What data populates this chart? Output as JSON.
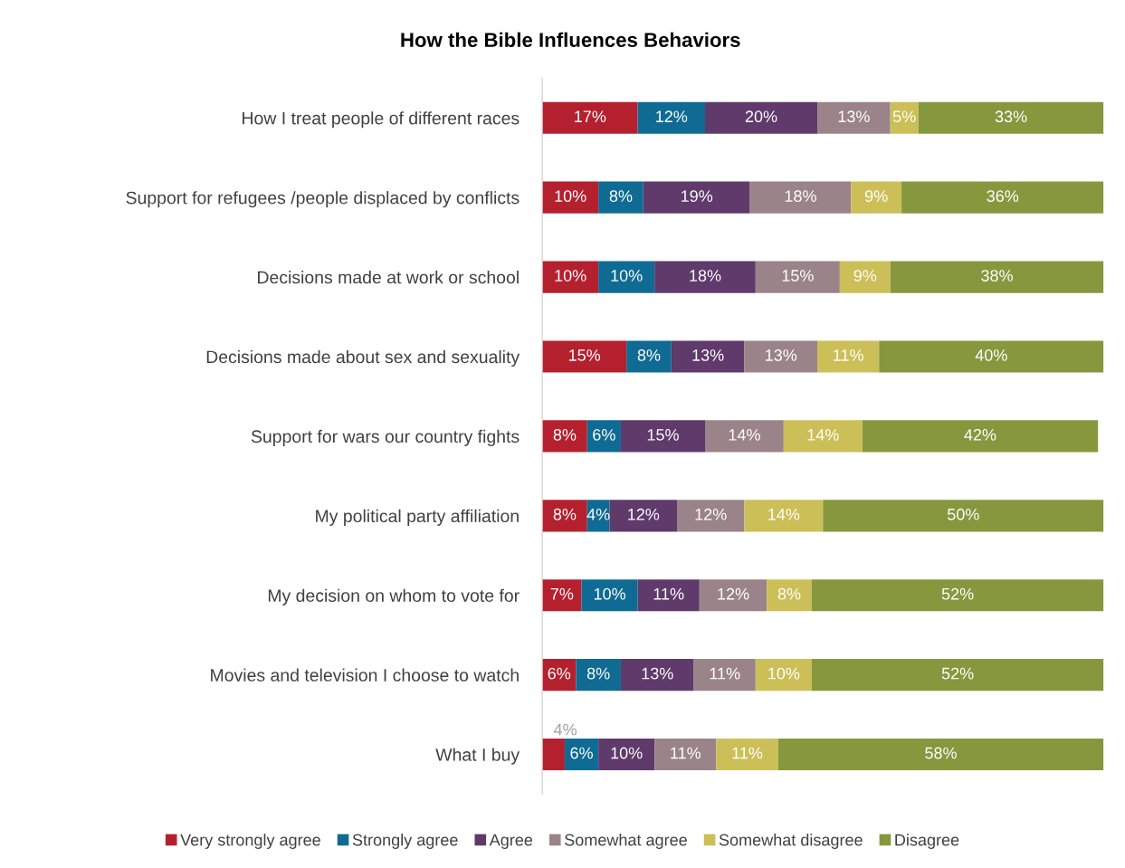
{
  "chart_data": {
    "type": "bar",
    "orientation": "horizontal",
    "stacked": true,
    "title": "How the Bible Influences Behaviors",
    "categories": [
      "How I treat people of different races",
      "Support for refugees /people displaced by conflicts",
      "Decisions made at work or school",
      "Decisions made about sex and sexuality",
      "Support for wars our country fights",
      "My political party affiliation",
      "My decision on whom to vote for",
      "Movies and television I choose to watch",
      "What I buy"
    ],
    "series": [
      {
        "name": "Very strongly agree",
        "color": "#b5202e",
        "values": [
          17,
          10,
          10,
          15,
          8,
          8,
          7,
          6,
          4
        ],
        "value_labels": [
          "17%",
          "10%",
          "10%",
          "15%",
          "8%",
          "8%",
          "7%",
          "6%",
          "4%"
        ]
      },
      {
        "name": "Strongly agree",
        "color": "#0f6b94",
        "values": [
          12,
          8,
          10,
          8,
          6,
          4,
          10,
          8,
          6
        ],
        "value_labels": [
          "12%",
          "8%",
          "10%",
          "8%",
          "6%",
          "4%",
          "10%",
          "8%",
          "6%"
        ]
      },
      {
        "name": "Agree",
        "color": "#5f3a6b",
        "values": [
          20,
          19,
          18,
          13,
          15,
          12,
          11,
          13,
          10
        ],
        "value_labels": [
          "20%",
          "19%",
          "18%",
          "13%",
          "15%",
          "12%",
          "11%",
          "13%",
          "10%"
        ]
      },
      {
        "name": "Somewhat agree",
        "color": "#9a8489",
        "values": [
          13,
          18,
          15,
          13,
          14,
          12,
          12,
          11,
          11
        ],
        "value_labels": [
          "13%",
          "18%",
          "15%",
          "13%",
          "14%",
          "12%",
          "12%",
          "11%",
          "11%"
        ]
      },
      {
        "name": "Somewhat disagree",
        "color": "#ccbf57",
        "values": [
          5,
          9,
          9,
          11,
          14,
          14,
          8,
          10,
          11
        ],
        "value_labels": [
          "5%",
          "9%",
          "9%",
          "11%",
          "14%",
          "14%",
          "8%",
          "10%",
          "11%"
        ]
      },
      {
        "name": "Disagree",
        "color": "#87973d",
        "values": [
          33,
          36,
          38,
          40,
          42,
          50,
          52,
          52,
          58
        ],
        "value_labels": [
          "33%",
          "36%",
          "38%",
          "40%",
          "42%",
          "50%",
          "52%",
          "52%",
          "58%"
        ]
      }
    ],
    "legend": "bottom",
    "grid": false,
    "tick_labels": "y"
  }
}
